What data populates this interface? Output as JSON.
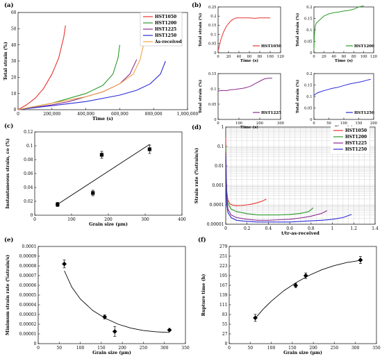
{
  "figure": {
    "colors": {
      "HST1050": "#e8322f",
      "HST1200": "#2c9a2c",
      "HST1225": "#8b2a8b",
      "HST1250": "#2b2bd6",
      "As-received": "#f0a24a",
      "black": "#000000",
      "grid": "#c8c8c8"
    }
  },
  "chart_data": [
    {
      "id": "a",
      "panel_label": "(a)",
      "type": "line",
      "xlabel": "Time (s)",
      "ylabel": "Total strain (%)",
      "xlim": [
        0,
        1000000
      ],
      "ylim": [
        0,
        60
      ],
      "xticks": [
        "0",
        "200,000",
        "400,000",
        "600,000",
        "800,000",
        "1,000,000"
      ],
      "yticks": [
        "0",
        "10",
        "20",
        "30",
        "40",
        "50",
        "60"
      ],
      "legend": "top-right",
      "series": [
        {
          "name": "HST1050",
          "color_key": "HST1050",
          "x": [
            0,
            50000,
            100000,
            150000,
            200000,
            240000,
            270000,
            280000
          ],
          "y": [
            0,
            3,
            7,
            13,
            22,
            32,
            45,
            52
          ]
        },
        {
          "name": "HST1200",
          "color_key": "HST1200",
          "x": [
            0,
            100000,
            200000,
            300000,
            400000,
            500000,
            560000,
            590000,
            600000
          ],
          "y": [
            0,
            2,
            4,
            7,
            10,
            15,
            22,
            32,
            40
          ]
        },
        {
          "name": "HST1225",
          "color_key": "HST1225",
          "x": [
            0,
            100000,
            200000,
            300000,
            400000,
            500000,
            600000,
            660000,
            700000
          ],
          "y": [
            0,
            1.5,
            3,
            5,
            8,
            11,
            16,
            22,
            31
          ]
        },
        {
          "name": "HST1250",
          "color_key": "HST1250",
          "x": [
            0,
            200000,
            400000,
            600000,
            700000,
            780000,
            840000,
            870000
          ],
          "y": [
            0,
            2.5,
            5,
            9,
            12,
            16,
            22,
            30
          ]
        },
        {
          "name": "As-received",
          "color_key": "As-received",
          "x": [
            0,
            200000,
            400000,
            500000,
            600000,
            680000,
            720000,
            740000
          ],
          "y": [
            0,
            4,
            8,
            11,
            16,
            22,
            31,
            40
          ]
        }
      ]
    },
    {
      "id": "b1",
      "panel_label": "(b)",
      "type": "line",
      "xlabel": "Time (s)",
      "ylabel": "Total strain (%)",
      "xlim": [
        0,
        120
      ],
      "ylim": [
        0,
        0.25
      ],
      "xticks": [
        "0",
        "20",
        "40",
        "60",
        "80",
        "100",
        "120"
      ],
      "yticks": [
        "0",
        "0.05",
        "0.1",
        "0.15",
        "0.2",
        "0.25"
      ],
      "series": [
        {
          "name": "HST1050",
          "color_key": "HST1050",
          "x": [
            0,
            5,
            10,
            15,
            20,
            25,
            30,
            35,
            40,
            50,
            60,
            70,
            80,
            90,
            100
          ],
          "y": [
            0.01,
            0.07,
            0.11,
            0.14,
            0.16,
            0.175,
            0.185,
            0.19,
            0.19,
            0.19,
            0.19,
            0.188,
            0.19,
            0.19,
            0.19
          ]
        }
      ]
    },
    {
      "id": "b2",
      "type": "line",
      "xlabel": "Time (s)",
      "ylabel": "Total strain (%)",
      "xlim": [
        0,
        120
      ],
      "ylim": [
        0,
        0.2
      ],
      "xticks": [
        "0",
        "20",
        "40",
        "60",
        "80",
        "100",
        "120"
      ],
      "yticks": [
        "0",
        "0.05",
        "0.1",
        "0.15",
        "0.2"
      ],
      "series": [
        {
          "name": "HST1200",
          "color_key": "HST1200",
          "x": [
            0,
            1,
            3,
            5,
            10,
            20,
            30,
            40,
            50,
            60,
            70,
            80,
            90,
            100
          ],
          "y": [
            0.01,
            0.08,
            0.12,
            0.13,
            0.14,
            0.16,
            0.17,
            0.175,
            0.178,
            0.182,
            0.185,
            0.19,
            0.2,
            0.205
          ]
        }
      ]
    },
    {
      "id": "b3",
      "type": "line",
      "xlabel": "Time (s)",
      "ylabel": "Total strain (%)",
      "xlim": [
        0,
        300
      ],
      "ylim": [
        0,
        0.15
      ],
      "xticks": [
        "0",
        "100",
        "200",
        "300"
      ],
      "yticks": [
        "0",
        "0.05",
        "0.1",
        "0.15"
      ],
      "series": [
        {
          "name": "HST1225",
          "color_key": "HST1225",
          "x": [
            0,
            20,
            40,
            60,
            80,
            100,
            120,
            140,
            160,
            180,
            200,
            220,
            240,
            260
          ],
          "y": [
            0.093,
            0.095,
            0.094,
            0.097,
            0.098,
            0.1,
            0.102,
            0.105,
            0.11,
            0.118,
            0.125,
            0.132,
            0.135,
            0.135
          ]
        }
      ]
    },
    {
      "id": "b4",
      "type": "line",
      "xlabel": "Time (s)",
      "ylabel": "Total strain (%)",
      "xlim": [
        0,
        200
      ],
      "ylim": [
        0,
        0.2
      ],
      "xticks": [
        "0",
        "50",
        "100",
        "150",
        "200"
      ],
      "yticks": [
        "0",
        "0.05",
        "0.1",
        "0.15",
        "0.2"
      ],
      "series": [
        {
          "name": "HST1250",
          "color_key": "HST1250",
          "x": [
            0,
            10,
            20,
            40,
            60,
            80,
            100,
            120,
            140,
            160,
            180,
            190
          ],
          "y": [
            0.105,
            0.115,
            0.12,
            0.128,
            0.135,
            0.14,
            0.148,
            0.155,
            0.16,
            0.165,
            0.172,
            0.175
          ]
        }
      ]
    },
    {
      "id": "c",
      "panel_label": "(c)",
      "type": "scatter",
      "xlabel": "Grain size (μm)",
      "ylabel": "Instantaneous strain, εo (%)",
      "xlim": [
        0,
        400
      ],
      "ylim": [
        0,
        0.12
      ],
      "xticks": [
        "0",
        "100",
        "200",
        "300",
        "400"
      ],
      "yticks": [
        "0",
        "0.02",
        "0.04",
        "0.06",
        "0.08",
        "0.1",
        "0.12"
      ],
      "points": {
        "x": [
          62,
          158,
          182,
          312
        ],
        "y": [
          0.0155,
          0.032,
          0.087,
          0.095
        ],
        "err": [
          0.003,
          0.004,
          0.005,
          0.006
        ]
      },
      "fit": {
        "x": [
          60,
          312
        ],
        "y": [
          0.015,
          0.102
        ]
      }
    },
    {
      "id": "d",
      "panel_label": "(d)",
      "type": "line",
      "log_y": true,
      "grid": true,
      "xlabel": "t/tr-as-received",
      "ylabel": "Strain rate (%strain/s)",
      "xlim": [
        0,
        1.4
      ],
      "ylim": [
        1e-05,
        1
      ],
      "xticks": [
        "0",
        "0.2",
        "0.4",
        "0.6",
        "0.8",
        "1",
        "1.2",
        "1.4"
      ],
      "yticks": [
        "1",
        "0.1",
        "0.01",
        "0.001",
        "0.0001",
        "0.00001"
      ],
      "legend": "top-right",
      "series": [
        {
          "name": "HST1050",
          "color_key": "HST1050",
          "x": [
            0.0,
            0.005,
            0.01,
            0.02,
            0.04,
            0.07,
            0.1,
            0.15,
            0.2,
            0.25,
            0.3,
            0.35,
            0.38
          ],
          "y": [
            0.3,
            0.004,
            0.0005,
            0.00018,
            0.00011,
            9.5e-05,
            9e-05,
            9.2e-05,
            0.0001,
            0.00011,
            0.00013,
            0.00016,
            0.0002
          ]
        },
        {
          "name": "HST1200",
          "color_key": "HST1200",
          "x": [
            0.0,
            0.005,
            0.01,
            0.02,
            0.05,
            0.1,
            0.2,
            0.3,
            0.4,
            0.5,
            0.6,
            0.7,
            0.78,
            0.82
          ],
          "y": [
            0.1,
            0.002,
            0.0004,
            0.00012,
            6e-05,
            4.5e-05,
            3.5e-05,
            3e-05,
            3e-05,
            3e-05,
            3.2e-05,
            3.6e-05,
            4.5e-05,
            7e-05
          ]
        },
        {
          "name": "HST1225",
          "color_key": "HST1225",
          "x": [
            0.0,
            0.005,
            0.01,
            0.02,
            0.05,
            0.1,
            0.2,
            0.3,
            0.4,
            0.5,
            0.6,
            0.7,
            0.8,
            0.9,
            0.95
          ],
          "y": [
            0.05,
            0.001,
            0.0002,
            6e-05,
            3e-05,
            2.2e-05,
            1.8e-05,
            1.6e-05,
            1.6e-05,
            1.7e-05,
            1.8e-05,
            2.1e-05,
            2.6e-05,
            3.6e-05,
            5e-05
          ]
        },
        {
          "name": "HST1250",
          "color_key": "HST1250",
          "x": [
            0.0,
            0.005,
            0.01,
            0.02,
            0.05,
            0.1,
            0.2,
            0.3,
            0.4,
            0.5,
            0.6,
            0.7,
            0.8,
            0.9,
            1.0,
            1.1,
            1.18
          ],
          "y": [
            0.03,
            0.0006,
            0.0001,
            4e-05,
            2.2e-05,
            1.6e-05,
            1.4e-05,
            1.3e-05,
            1.3e-05,
            1.3e-05,
            1.3e-05,
            1.4e-05,
            1.5e-05,
            1.6e-05,
            1.8e-05,
            2.2e-05,
            3.2e-05
          ]
        }
      ]
    },
    {
      "id": "e",
      "panel_label": "(e)",
      "type": "scatter",
      "xlabel": "Grain size (μm)",
      "ylabel": "Minimum strain rate (%strain/s)",
      "xlim": [
        0,
        350
      ],
      "ylim": [
        0,
        0.0001
      ],
      "xticks": [
        "0",
        "50",
        "100",
        "150",
        "200",
        "250",
        "300",
        "350"
      ],
      "yticks": [
        "0",
        "0.00001",
        "0.00002",
        "0.00003",
        "0.00004",
        "0.00005",
        "0.00006",
        "0.00007",
        "0.00008",
        "0.00009",
        "0.0001"
      ],
      "points": {
        "x": [
          62,
          158,
          182,
          312
        ],
        "y": [
          8.2e-05,
          2.75e-05,
          1.25e-05,
          1.4e-05
        ],
        "err": [
          4e-06,
          2e-06,
          5e-06,
          1e-06
        ]
      },
      "fit": {
        "x": [
          62,
          80,
          100,
          130,
          160,
          190,
          220,
          250,
          280,
          312
        ],
        "y": [
          7.5e-05,
          5.8e-05,
          4.6e-05,
          3.4e-05,
          2.6e-05,
          2e-05,
          1.6e-05,
          1.35e-05,
          1.22e-05,
          1.15e-05
        ]
      }
    },
    {
      "id": "f",
      "panel_label": "(f)",
      "type": "scatter",
      "xlabel": "Grain size (μm)",
      "ylabel": "Rupture time (h)",
      "xlim": [
        0,
        350
      ],
      "ylim": [
        0,
        279
      ],
      "xticks": [
        "0",
        "50",
        "100",
        "150",
        "200",
        "250",
        "300",
        "350"
      ],
      "yticks": [
        "0",
        "27",
        "55",
        "83",
        "111",
        "139",
        "167",
        "195",
        "223",
        "251",
        "279"
      ],
      "points": {
        "x": [
          62,
          158,
          182,
          312
        ],
        "y": [
          74,
          167,
          195,
          240
        ],
        "err": [
          10,
          6,
          8,
          10
        ]
      },
      "fit": {
        "x": [
          60,
          80,
          100,
          130,
          160,
          190,
          220,
          250,
          280,
          312
        ],
        "y": [
          70,
          98,
          122,
          152,
          176,
          196,
          212,
          224,
          233,
          239
        ]
      }
    }
  ]
}
